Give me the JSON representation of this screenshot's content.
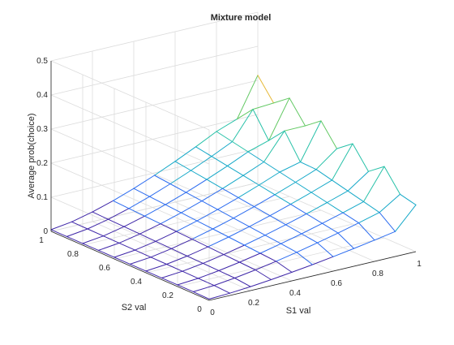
{
  "chart_data": {
    "type": "surface",
    "title": "Mixture model",
    "xlabel": "S1 val",
    "ylabel": "S2 val",
    "zlabel": "Average prob(choice)",
    "xlim": [
      0,
      1
    ],
    "ylim": [
      0,
      1
    ],
    "zlim": [
      0,
      0.5
    ],
    "x_ticks": [
      "0",
      "0.2",
      "0.4",
      "0.6",
      "0.8",
      "1"
    ],
    "y_ticks": [
      "0",
      "0.2",
      "0.4",
      "0.6",
      "0.8",
      "1"
    ],
    "z_ticks": [
      "0",
      "0.1",
      "0.2",
      "0.3",
      "0.4",
      "0.5"
    ],
    "grid": true,
    "colormap": [
      "#3e26a8",
      "#2c6cf0",
      "#14a8c8",
      "#27c1a8",
      "#63c964",
      "#e6b938",
      "#f9fb0e"
    ],
    "surface_description": "wireframe surface: rises with S1 val, peaks near 0.3-0.35 at S1 val ~1, nearly flat near 0 at low S1 val"
  }
}
